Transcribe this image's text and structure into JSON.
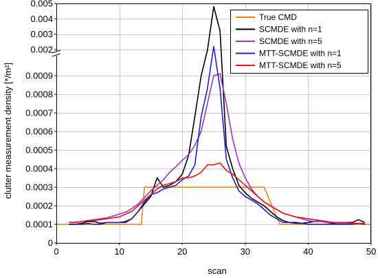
{
  "chart_data": {
    "type": "line",
    "xlabel": "scan",
    "ylabel": "clutter measurement density [*/m²]",
    "xlim": [
      0,
      50
    ],
    "xticks": [
      "0",
      "10",
      "20",
      "30",
      "40",
      "50"
    ],
    "y_lower": {
      "ylim": [
        0,
        0.001
      ],
      "ticks": [
        "0",
        "0.0001",
        "0.0002",
        "0.0003",
        "0.0004",
        "0.0005",
        "0.0006",
        "0.0007",
        "0.0008",
        "0.0009"
      ]
    },
    "y_upper": {
      "ylim": [
        0.002,
        0.005
      ],
      "ticks": [
        "0.002",
        "0.003",
        "0.004",
        "0.005"
      ]
    },
    "axis_break": true,
    "grid": true,
    "legend_position": "top-right",
    "series": [
      {
        "name": "True CMD",
        "color": "#ff7f0e",
        "x": [
          0,
          13.5,
          14,
          33,
          35.5,
          50
        ],
        "y": [
          0.0001,
          0.0001,
          0.0003,
          0.0003,
          0.0001,
          0.0001
        ]
      },
      {
        "name": "SCMDE with n=1",
        "color": "#000000",
        "x": [
          2,
          3,
          4,
          5,
          6,
          7,
          8,
          9,
          10,
          11,
          12,
          13,
          14,
          15,
          16,
          17,
          18,
          19,
          20,
          21,
          22,
          23,
          24,
          25,
          26,
          27,
          28,
          29,
          30,
          31,
          32,
          33,
          34,
          35,
          36,
          37,
          38,
          39,
          40,
          41,
          42,
          43,
          44,
          45,
          46,
          47,
          48,
          49
        ],
        "y": [
          0.0001,
          0.0001,
          0.000105,
          0.000115,
          0.000115,
          0.000105,
          0.00011,
          0.00011,
          0.00011,
          0.000115,
          0.00013,
          0.00017,
          0.00021,
          0.00025,
          0.00035,
          0.0003,
          0.00031,
          0.00033,
          0.00037,
          0.00047,
          0.00068,
          0.0009,
          0.0019,
          0.0048,
          0.0032,
          0.00052,
          0.0004,
          0.00031,
          0.00027,
          0.00024,
          0.00022,
          0.0002,
          0.00017,
          0.00014,
          0.00012,
          0.00011,
          0.00011,
          0.000105,
          0.00011,
          0.000115,
          0.00012,
          0.00011,
          0.000105,
          0.00011,
          0.00011,
          0.00011,
          0.000125,
          0.00011
        ]
      },
      {
        "name": "SCMDE with n=5",
        "color": "#9933cc",
        "x": [
          2,
          3,
          4,
          5,
          6,
          7,
          8,
          9,
          10,
          11,
          12,
          13,
          14,
          15,
          16,
          17,
          18,
          19,
          20,
          21,
          22,
          23,
          24,
          25,
          26,
          27,
          28,
          29,
          30,
          31,
          32,
          33,
          34,
          35,
          36,
          37,
          38,
          39,
          40,
          41,
          42,
          43,
          44,
          45,
          46,
          47,
          48,
          49
        ],
        "y": [
          0.00011,
          0.000112,
          0.000115,
          0.00012,
          0.000125,
          0.00013,
          0.000135,
          0.000145,
          0.000155,
          0.000165,
          0.000185,
          0.00021,
          0.000245,
          0.00028,
          0.00031,
          0.00034,
          0.00038,
          0.00041,
          0.000445,
          0.000475,
          0.000525,
          0.0006,
          0.00075,
          0.0009,
          0.00091,
          0.00075,
          0.00056,
          0.00043,
          0.00035,
          0.00029,
          0.00025,
          0.00022,
          0.0002,
          0.00018,
          0.00016,
          0.00015,
          0.00014,
          0.00013,
          0.00012,
          0.000115,
          0.000115,
          0.00011,
          0.00011,
          0.000105,
          0.000105,
          0.000105,
          0.000105,
          0.0001
        ]
      },
      {
        "name": "MTT-SCMDE with n=1",
        "color": "#1f1fbf",
        "x": [
          2,
          3,
          4,
          5,
          6,
          7,
          8,
          9,
          10,
          11,
          12,
          13,
          14,
          15,
          16,
          17,
          18,
          19,
          20,
          21,
          22,
          23,
          24,
          25,
          26,
          27,
          28,
          29,
          30,
          31,
          32,
          33,
          34,
          35,
          36,
          37,
          38,
          39,
          40,
          41,
          42,
          43,
          44,
          45,
          46,
          47,
          48,
          49
        ],
        "y": [
          0.0001,
          0.0001,
          0.0001,
          0.000105,
          0.0001,
          0.0001,
          0.00011,
          0.00011,
          0.00011,
          0.00011,
          0.00013,
          0.00017,
          0.00022,
          0.00026,
          0.00027,
          0.00029,
          0.0003,
          0.00031,
          0.00034,
          0.00036,
          0.00042,
          0.00068,
          0.00083,
          0.0022,
          0.00083,
          0.00045,
          0.00035,
          0.00028,
          0.00025,
          0.00023,
          0.00021,
          0.00018,
          0.00015,
          0.00013,
          0.00011,
          0.00011,
          0.000105,
          0.000105,
          0.0001,
          0.0001,
          0.0001,
          0.0001,
          0.0001,
          0.0001,
          0.0001,
          0.0001,
          0.000105,
          0.0001
        ]
      },
      {
        "name": "MTT-SCMDE with n=5",
        "color": "#ee1111",
        "x": [
          2,
          3,
          4,
          5,
          6,
          7,
          8,
          9,
          10,
          11,
          12,
          13,
          14,
          15,
          16,
          17,
          18,
          19,
          20,
          21,
          22,
          23,
          24,
          25,
          26,
          27,
          28,
          29,
          30,
          31,
          32,
          33,
          34,
          35,
          36,
          37,
          38,
          39,
          40,
          41,
          42,
          43,
          44,
          45,
          46,
          47,
          48,
          49
        ],
        "y": [
          0.00011,
          0.00011,
          0.000115,
          0.00012,
          0.00012,
          0.000125,
          0.00013,
          0.000135,
          0.00014,
          0.000155,
          0.00017,
          0.0002,
          0.00023,
          0.00026,
          0.00029,
          0.00031,
          0.00032,
          0.00033,
          0.00035,
          0.00035,
          0.00036,
          0.00038,
          0.00042,
          0.00042,
          0.00043,
          0.00039,
          0.00037,
          0.00034,
          0.00031,
          0.00028,
          0.00025,
          0.00022,
          0.0002,
          0.00018,
          0.00016,
          0.00015,
          0.00014,
          0.000135,
          0.00013,
          0.000125,
          0.00012,
          0.000115,
          0.00011,
          0.00011,
          0.00011,
          0.000105,
          0.000105,
          0.000105
        ]
      }
    ]
  }
}
